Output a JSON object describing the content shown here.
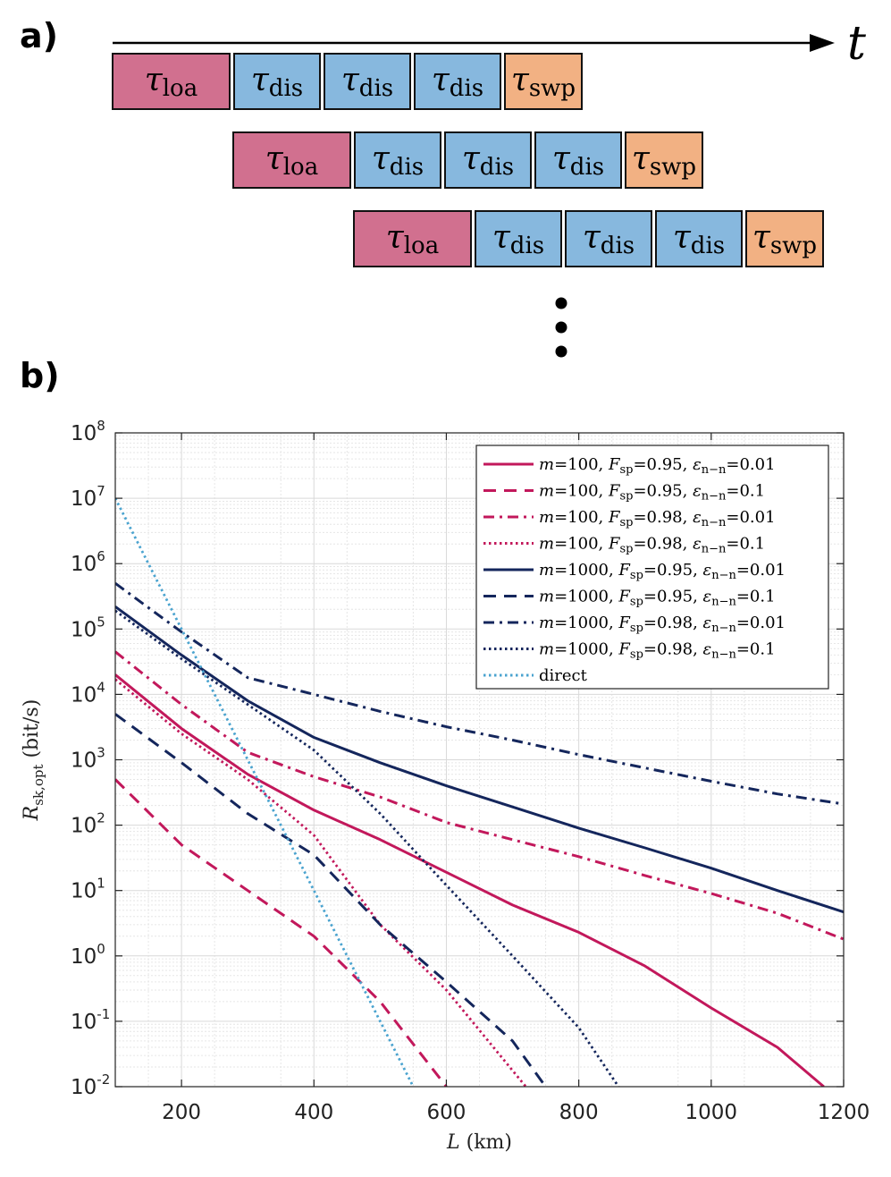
{
  "panel_a": {
    "label": "a)",
    "axis_label": "t",
    "timelines": [
      {
        "boxes": [
          {
            "name": "τ",
            "sub": "loa",
            "color": "#d1708f"
          },
          {
            "name": "τ",
            "sub": "dis",
            "color": "#87b8de"
          },
          {
            "name": "τ",
            "sub": "dis",
            "color": "#87b8de"
          },
          {
            "name": "τ",
            "sub": "dis",
            "color": "#87b8de"
          },
          {
            "name": "τ",
            "sub": "swp",
            "color": "#f2b183"
          }
        ]
      },
      {
        "boxes": [
          {
            "name": "τ",
            "sub": "loa",
            "color": "#d1708f"
          },
          {
            "name": "τ",
            "sub": "dis",
            "color": "#87b8de"
          },
          {
            "name": "τ",
            "sub": "dis",
            "color": "#87b8de"
          },
          {
            "name": "τ",
            "sub": "dis",
            "color": "#87b8de"
          },
          {
            "name": "τ",
            "sub": "swp",
            "color": "#f2b183"
          }
        ]
      },
      {
        "boxes": [
          {
            "name": "τ",
            "sub": "loa",
            "color": "#d1708f"
          },
          {
            "name": "τ",
            "sub": "dis",
            "color": "#87b8de"
          },
          {
            "name": "τ",
            "sub": "dis",
            "color": "#87b8de"
          },
          {
            "name": "τ",
            "sub": "dis",
            "color": "#87b8de"
          },
          {
            "name": "τ",
            "sub": "swp",
            "color": "#f2b183"
          }
        ]
      }
    ]
  },
  "panel_b": {
    "label": "b)"
  },
  "chart_data": {
    "type": "line",
    "xscale": "linear",
    "yscale": "log",
    "xlim": [
      100,
      1200
    ],
    "ylim_log10": [
      -2,
      8
    ],
    "xticks": [
      200,
      400,
      600,
      800,
      1000,
      1200
    ],
    "yticks_exp": [
      -2,
      -1,
      0,
      1,
      2,
      3,
      4,
      5,
      6,
      7,
      8
    ],
    "xlabel": {
      "var": "L",
      "unit": " (km)"
    },
    "ylabel": {
      "var": "R",
      "sub": "sk,opt",
      "unit": "  (bit/s)"
    },
    "grid": true,
    "legend_position": "top-right",
    "series": [
      {
        "m": "100",
        "F": "0.95",
        "eps": "0.01",
        "color": "#c2185b",
        "style": "solid",
        "x": [
          100,
          200,
          300,
          400,
          500,
          600,
          700,
          800,
          900,
          1000,
          1100,
          1170
        ],
        "y": [
          20000,
          3000,
          600,
          170,
          60,
          19,
          6,
          2.3,
          0.7,
          0.16,
          0.04,
          0.01
        ]
      },
      {
        "m": "100",
        "F": "0.95",
        "eps": "0.1",
        "color": "#c2185b",
        "style": "dashed",
        "x": [
          100,
          200,
          300,
          400,
          500,
          600
        ],
        "y": [
          500,
          50,
          10,
          2,
          0.2,
          0.01
        ]
      },
      {
        "m": "100",
        "F": "0.98",
        "eps": "0.01",
        "color": "#c2185b",
        "style": "dashdot",
        "x": [
          100,
          200,
          300,
          400,
          500,
          600,
          700,
          800,
          900,
          1000,
          1100,
          1200
        ],
        "y": [
          45000,
          7000,
          1300,
          550,
          270,
          110,
          60,
          33,
          17,
          9,
          4.5,
          1.8
        ]
      },
      {
        "m": "100",
        "F": "0.98",
        "eps": "0.1",
        "color": "#c2185b",
        "style": "dotted",
        "x": [
          100,
          200,
          300,
          400,
          500,
          600,
          720
        ],
        "y": [
          17000,
          2500,
          500,
          70,
          3,
          0.3,
          0.01
        ]
      },
      {
        "m": "1000",
        "F": "0.95",
        "eps": "0.01",
        "color": "#14265c",
        "style": "solid",
        "x": [
          100,
          200,
          300,
          400,
          500,
          600,
          700,
          800,
          900,
          1000,
          1100,
          1200
        ],
        "y": [
          220000,
          40000,
          8000,
          2200,
          900,
          400,
          190,
          90,
          45,
          22,
          10,
          4.7
        ]
      },
      {
        "m": "1000",
        "F": "0.95",
        "eps": "0.1",
        "color": "#14265c",
        "style": "dashed",
        "x": [
          100,
          200,
          300,
          400,
          500,
          600,
          700,
          750
        ],
        "y": [
          5000,
          900,
          150,
          35,
          3,
          0.4,
          0.05,
          0.01
        ]
      },
      {
        "m": "1000",
        "F": "0.98",
        "eps": "0.01",
        "color": "#14265c",
        "style": "dashdot",
        "x": [
          100,
          200,
          300,
          400,
          500,
          600,
          700,
          800,
          900,
          1000,
          1100,
          1200
        ],
        "y": [
          500000,
          90000,
          18000,
          10000,
          5500,
          3200,
          2000,
          1200,
          750,
          470,
          300,
          210
        ]
      },
      {
        "m": "1000",
        "F": "0.98",
        "eps": "0.1",
        "color": "#14265c",
        "style": "dotted",
        "x": [
          100,
          200,
          300,
          400,
          500,
          600,
          700,
          800,
          860
        ],
        "y": [
          190000,
          35000,
          7000,
          1400,
          150,
          12,
          1,
          0.08,
          0.01
        ]
      },
      {
        "label": "direct",
        "color": "#4aa3cf",
        "style": "dotted",
        "x": [
          100,
          200,
          300,
          400,
          500,
          550
        ],
        "y": [
          10000000,
          100000,
          1000,
          10,
          0.1,
          0.01
        ]
      }
    ]
  }
}
